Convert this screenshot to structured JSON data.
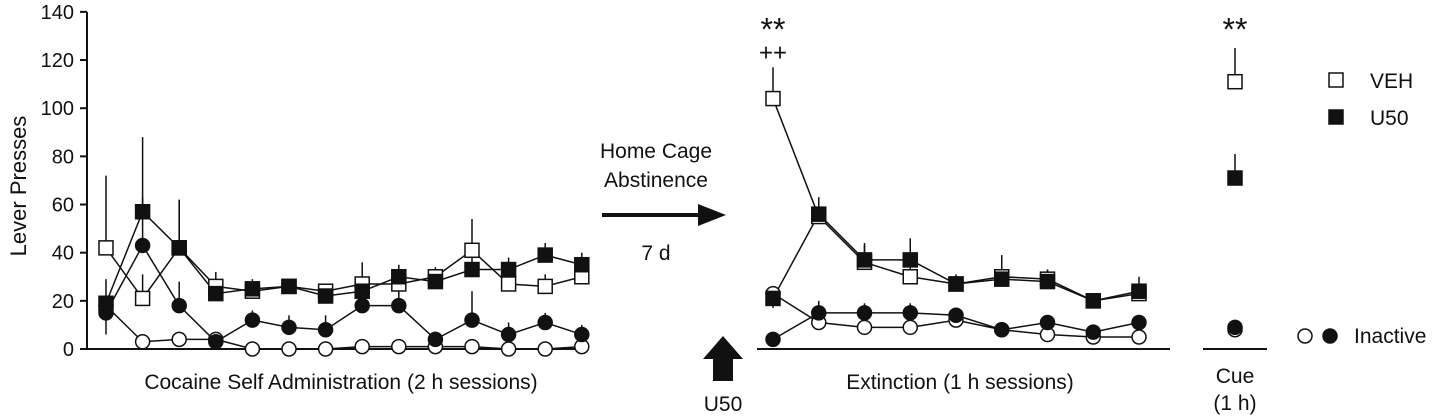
{
  "chart_data": [
    {
      "type": "line",
      "title": "",
      "ylabel": "Lever Presses",
      "xlabel": "Cocaine Self Administration (2 h sessions)",
      "ylim": [
        0,
        140
      ],
      "yticks": [
        0,
        20,
        40,
        60,
        80,
        100,
        120,
        140
      ],
      "x": [
        1,
        2,
        3,
        4,
        5,
        6,
        7,
        8,
        9,
        10,
        11,
        12,
        13,
        14
      ],
      "series": [
        {
          "name": "VEH",
          "marker": "open-square",
          "values": [
            42,
            21,
            42,
            26,
            24,
            26,
            24,
            27,
            27,
            30,
            41,
            27,
            26,
            30
          ],
          "error": [
            30,
            10,
            20,
            6,
            3,
            3,
            3,
            9,
            5,
            4,
            13,
            4,
            5,
            4
          ]
        },
        {
          "name": "U50",
          "marker": "filled-square",
          "values": [
            19,
            57,
            42,
            23,
            25,
            26,
            22,
            24,
            30,
            28,
            33,
            33,
            39,
            35
          ],
          "error": [
            10,
            31,
            20,
            5,
            4,
            3,
            3,
            6,
            5,
            4,
            6,
            5,
            5,
            5
          ]
        },
        {
          "name": "VEH inactive",
          "marker": "open-circle",
          "values": [
            18,
            3,
            4,
            4,
            0,
            0,
            0,
            1,
            1,
            1,
            1,
            0,
            0,
            1
          ],
          "error": [
            12,
            2,
            3,
            3,
            0,
            0,
            0,
            1,
            1,
            1,
            1,
            0,
            0,
            1
          ]
        },
        {
          "name": "U50 inactive",
          "marker": "filled-circle",
          "values": [
            15,
            43,
            18,
            3,
            12,
            9,
            8,
            18,
            18,
            4,
            12,
            6,
            11,
            6
          ],
          "error": [
            5,
            20,
            10,
            2,
            4,
            5,
            6,
            5,
            6,
            2,
            12,
            5,
            4,
            4
          ]
        }
      ]
    },
    {
      "type": "line",
      "title": "",
      "xlabel": "Extinction (1 h sessions)",
      "ylim": [
        0,
        140
      ],
      "x": [
        1,
        2,
        3,
        4,
        5,
        6,
        7,
        8,
        9
      ],
      "series": [
        {
          "name": "VEH",
          "marker": "open-square",
          "values": [
            104,
            55,
            36,
            30,
            27,
            30,
            29,
            20,
            23
          ],
          "error": [
            13,
            8,
            7,
            4,
            3,
            5,
            4,
            2,
            3
          ]
        },
        {
          "name": "U50",
          "marker": "filled-square",
          "values": [
            21,
            56,
            37,
            37,
            27,
            29,
            28,
            20,
            24
          ],
          "error": [
            3,
            7,
            7,
            9,
            4,
            10,
            5,
            2,
            6
          ]
        },
        {
          "name": "VEH inactive",
          "marker": "open-circle",
          "values": [
            23,
            11,
            9,
            9,
            12,
            8,
            6,
            5,
            5
          ],
          "error": [
            6,
            3,
            3,
            3,
            2,
            1,
            1,
            1,
            1
          ]
        },
        {
          "name": "U50 inactive",
          "marker": "filled-circle",
          "values": [
            4,
            15,
            15,
            15,
            14,
            8,
            11,
            7,
            11
          ],
          "error": [
            1,
            5,
            4,
            4,
            3,
            2,
            2,
            2,
            2
          ]
        }
      ],
      "annotations": [
        {
          "text": "**",
          "x": 1,
          "y": 134
        },
        {
          "text": "++",
          "x": 1,
          "y": 124
        }
      ]
    },
    {
      "type": "scatter",
      "title": "",
      "xlabel": "Cue (1 h)",
      "ylim": [
        0,
        140
      ],
      "series": [
        {
          "name": "VEH",
          "marker": "open-square",
          "values": [
            111
          ],
          "error": [
            14
          ]
        },
        {
          "name": "U50",
          "marker": "filled-square",
          "values": [
            71
          ],
          "error": [
            10
          ]
        },
        {
          "name": "VEH inactive",
          "marker": "open-circle",
          "values": [
            8
          ],
          "error": [
            0
          ]
        },
        {
          "name": "U50 inactive",
          "marker": "filled-circle",
          "values": [
            9
          ],
          "error": [
            0
          ]
        }
      ],
      "annotations": [
        {
          "text": "**",
          "y": 134
        }
      ]
    }
  ],
  "labels": {
    "arrow_top": [
      "Home Cage",
      "Abstinence"
    ],
    "arrow_bottom": "7 d",
    "drug_arrow": "U50",
    "cue_line1": "Cue",
    "cue_line2": "(1 h)"
  },
  "legend": {
    "items": [
      {
        "label": "VEH",
        "marker": "open-square"
      },
      {
        "label": "U50",
        "marker": "filled-square"
      },
      {
        "label": "Inactive",
        "marker": "circles"
      }
    ]
  }
}
